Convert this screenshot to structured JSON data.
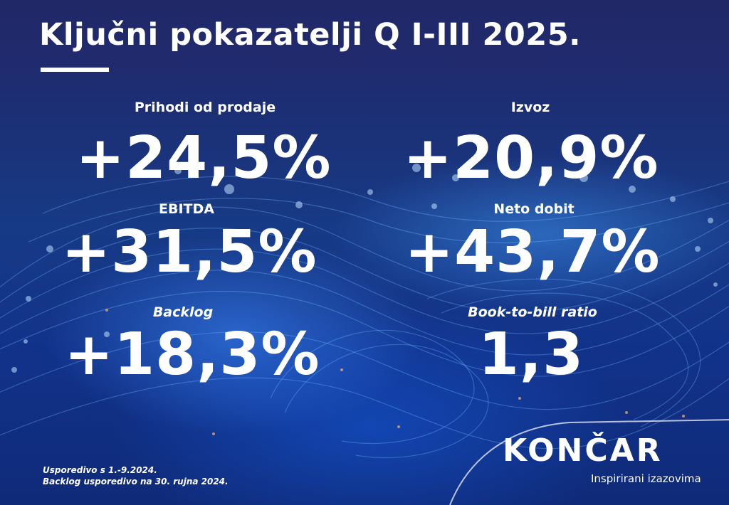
{
  "header": {
    "title": "Ključni pokazatelji Q I-III 2025."
  },
  "kpis": [
    {
      "label": "Prihodi od prodaje",
      "value": "+24,5%"
    },
    {
      "label": "Izvoz",
      "value": "+20,9%"
    },
    {
      "label": "EBITDA",
      "value": "+31,5%"
    },
    {
      "label": "Neto dobit",
      "value": "+43,7%"
    },
    {
      "label": "Backlog",
      "value": "+18,3%"
    },
    {
      "label": "Book-to-bill ratio",
      "value": "1,3"
    }
  ],
  "footnotes": [
    "Usporedivo s 1.-9.2024.",
    "Backlog usporedivo na 30. rujna 2024."
  ],
  "brand": {
    "name": "KONČAR",
    "tagline": "Inspirirani izazovima"
  },
  "colors": {
    "background": "#1b2a6b",
    "accent": "#ffffff",
    "glow": "#3c8cff"
  }
}
